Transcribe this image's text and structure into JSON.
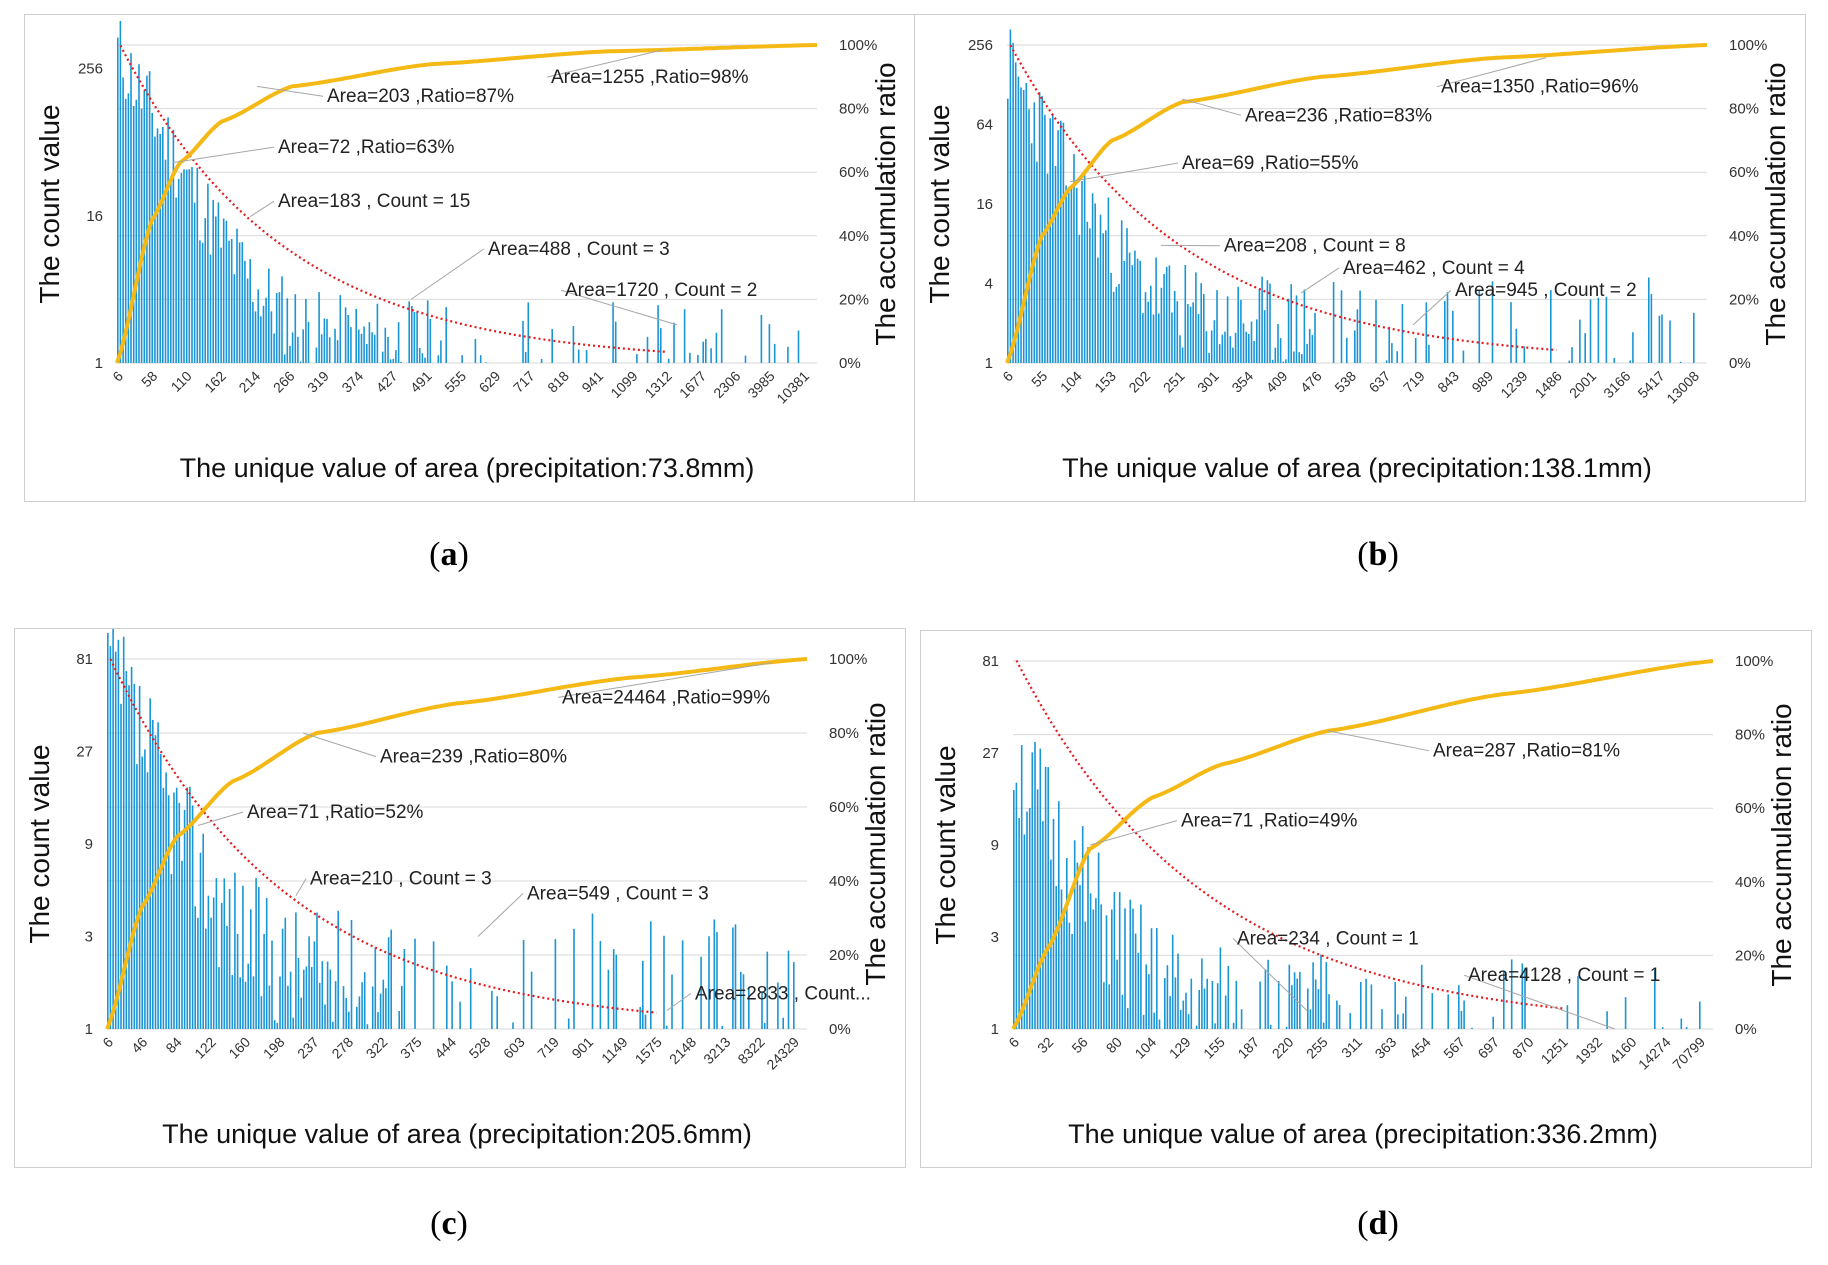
{
  "colors": {
    "bars": "#1b96d4",
    "cumulative": "#f5b915",
    "fit": "#e41a1c",
    "grid": "#d9d9d9",
    "annotation": "#a6a6a6"
  },
  "chart_data": [
    {
      "id": "a",
      "caption": "a",
      "type": "bar",
      "xlabel": "The unique value of area  (precipitation:73.8mm)",
      "ylabel": "The count value",
      "y2label": "The accumulation ratio",
      "y_ticks": [
        "256",
        "16",
        "1"
      ],
      "y_max": 400,
      "y2_ticks": [
        "100%",
        "80%",
        "60%",
        "40%",
        "20%",
        "0%"
      ],
      "x_ticks": [
        "6",
        "58",
        "110",
        "162",
        "214",
        "266",
        "319",
        "374",
        "427",
        "491",
        "555",
        "629",
        "717",
        "818",
        "941",
        "1099",
        "1312",
        "1677",
        "2306",
        "3985",
        "10381"
      ],
      "decay": 2.7,
      "tail_level": 1.5,
      "peak": 360,
      "curve_k": 0.11,
      "seed": 11,
      "cumulative_ratio": [
        [
          0,
          0
        ],
        [
          0.05,
          0.45
        ],
        [
          0.09,
          0.63
        ],
        [
          0.15,
          0.76
        ],
        [
          0.25,
          0.87
        ],
        [
          0.45,
          0.94
        ],
        [
          0.7,
          0.98
        ],
        [
          1,
          1
        ]
      ],
      "annotations": [
        {
          "text": "Area=203 ,Ratio=87%",
          "px": 0.2,
          "py": 0.87,
          "lx": 0.3,
          "ly": 0.82
        },
        {
          "text": "Area=1255 ,Ratio=98%",
          "px": 0.78,
          "py": 0.985,
          "lx": 0.62,
          "ly": 0.88
        },
        {
          "text": "Area=72 ,Ratio=63%",
          "px": 0.08,
          "py": 0.63,
          "lx": 0.23,
          "ly": 0.66
        },
        {
          "text": "Area=183 , Count = 15",
          "px": 0.19,
          "py": 0.46,
          "lx": 0.23,
          "ly": 0.49
        },
        {
          "text": "Area=488 , Count = 3",
          "px": 0.42,
          "py": 0.2,
          "lx": 0.53,
          "ly": 0.34
        },
        {
          "text": "Area=1720 , Count = 2",
          "px": 0.8,
          "py": 0.12,
          "lx": 0.64,
          "ly": 0.21
        }
      ]
    },
    {
      "id": "b",
      "caption": "b",
      "type": "bar",
      "xlabel": "The unique value of area (precipitation:138.1mm)",
      "ylabel": "The count value",
      "y2label": "The accumulation ratio",
      "y_ticks": [
        "256",
        "64",
        "16",
        "4",
        "1"
      ],
      "y_max": 256,
      "y2_ticks": [
        "100%",
        "80%",
        "60%",
        "40%",
        "20%",
        "0%"
      ],
      "x_ticks": [
        "6",
        "55",
        "104",
        "153",
        "202",
        "251",
        "301",
        "354",
        "409",
        "476",
        "538",
        "637",
        "719",
        "843",
        "989",
        "1239",
        "1486",
        "2001",
        "3166",
        "5417",
        "13008"
      ],
      "decay": 2.5,
      "tail_level": 2.0,
      "peak": 180,
      "curve_k": 0.09,
      "seed": 23,
      "cumulative_ratio": [
        [
          0,
          0
        ],
        [
          0.05,
          0.4
        ],
        [
          0.09,
          0.55
        ],
        [
          0.15,
          0.7
        ],
        [
          0.25,
          0.82
        ],
        [
          0.45,
          0.9
        ],
        [
          0.7,
          0.96
        ],
        [
          1,
          1
        ]
      ],
      "annotations": [
        {
          "text": "Area=236 ,Ratio=83%",
          "px": 0.25,
          "py": 0.83,
          "lx": 0.34,
          "ly": 0.76
        },
        {
          "text": "Area=1350 ,Ratio=96%",
          "px": 0.77,
          "py": 0.96,
          "lx": 0.62,
          "ly": 0.85
        },
        {
          "text": "Area=69 ,Ratio=55%",
          "px": 0.09,
          "py": 0.57,
          "lx": 0.25,
          "ly": 0.61
        },
        {
          "text": "Area=208 , Count = 8",
          "px": 0.22,
          "py": 0.37,
          "lx": 0.31,
          "ly": 0.35
        },
        {
          "text": "Area=462 , Count = 4",
          "px": 0.42,
          "py": 0.22,
          "lx": 0.48,
          "ly": 0.28
        },
        {
          "text": "Area=945 , Count = 2",
          "px": 0.58,
          "py": 0.12,
          "lx": 0.64,
          "ly": 0.21
        }
      ]
    },
    {
      "id": "c",
      "caption": "c",
      "type": "bar",
      "xlabel": "The unique value of area (precipitation:205.6mm)",
      "ylabel": "The count value",
      "y2label": "The accumulation ratio",
      "y_ticks": [
        "81",
        "27",
        "9",
        "3",
        "1"
      ],
      "y_max": 81,
      "y2_ticks": [
        "100%",
        "80%",
        "60%",
        "40%",
        "20%",
        "0%"
      ],
      "x_ticks": [
        "6",
        "46",
        "84",
        "122",
        "160",
        "198",
        "237",
        "278",
        "322",
        "375",
        "444",
        "528",
        "603",
        "719",
        "901",
        "1149",
        "1575",
        "2148",
        "3213",
        "8322",
        "24329"
      ],
      "decay": 2.3,
      "tail_level": 1.8,
      "peak": 80,
      "curve_k": 0.08,
      "seed": 37,
      "cumulative_ratio": [
        [
          0,
          0
        ],
        [
          0.05,
          0.33
        ],
        [
          0.1,
          0.52
        ],
        [
          0.18,
          0.67
        ],
        [
          0.3,
          0.8
        ],
        [
          0.5,
          0.88
        ],
        [
          0.75,
          0.95
        ],
        [
          1,
          1
        ]
      ],
      "annotations": [
        {
          "text": "Area=239 ,Ratio=80%",
          "px": 0.28,
          "py": 0.8,
          "lx": 0.39,
          "ly": 0.72
        },
        {
          "text": "Area=24464 ,Ratio=99%",
          "px": 0.95,
          "py": 0.99,
          "lx": 0.65,
          "ly": 0.88
        },
        {
          "text": "Area=71 ,Ratio=52%",
          "px": 0.13,
          "py": 0.55,
          "lx": 0.2,
          "ly": 0.57
        },
        {
          "text": "Area=210 , Count = 3",
          "px": 0.27,
          "py": 0.36,
          "lx": 0.29,
          "ly": 0.39
        },
        {
          "text": "Area=549 , Count = 3",
          "px": 0.53,
          "py": 0.25,
          "lx": 0.6,
          "ly": 0.35
        },
        {
          "text": "Area=2833 , Count...",
          "px": 0.8,
          "py": 0.05,
          "lx": 0.84,
          "ly": 0.08
        }
      ]
    },
    {
      "id": "d",
      "caption": "d",
      "type": "bar",
      "xlabel": "The unique value of area (precipitation:336.2mm)",
      "ylabel": "The count value",
      "y2label": "The accumulation ratio",
      "y_ticks": [
        "81",
        "27",
        "9",
        "3",
        "1"
      ],
      "y_max": 81,
      "y2_ticks": [
        "100%",
        "80%",
        "60%",
        "40%",
        "20%",
        "0%"
      ],
      "x_ticks": [
        "6",
        "32",
        "56",
        "80",
        "104",
        "129",
        "155",
        "187",
        "220",
        "255",
        "311",
        "363",
        "454",
        "567",
        "697",
        "870",
        "1251",
        "1932",
        "4160",
        "14274",
        "70799"
      ],
      "decay": 2.0,
      "tail_level": 1.1,
      "peak": 25,
      "curve_k": 0.05,
      "seed": 51,
      "cumulative_ratio": [
        [
          0,
          0
        ],
        [
          0.05,
          0.22
        ],
        [
          0.11,
          0.49
        ],
        [
          0.2,
          0.63
        ],
        [
          0.3,
          0.72
        ],
        [
          0.45,
          0.81
        ],
        [
          0.7,
          0.91
        ],
        [
          1,
          1
        ]
      ],
      "annotations": [
        {
          "text": "Area=287 ,Ratio=81%",
          "px": 0.45,
          "py": 0.81,
          "lx": 0.6,
          "ly": 0.74
        },
        {
          "text": "Area=71 ,Ratio=49%",
          "px": 0.11,
          "py": 0.5,
          "lx": 0.24,
          "ly": 0.55
        },
        {
          "text": "Area=234 , Count = 1",
          "px": 0.42,
          "py": 0.05,
          "lx": 0.32,
          "ly": 0.23
        },
        {
          "text": "Area=4128 , Count = 1",
          "px": 0.86,
          "py": 0.0,
          "lx": 0.65,
          "ly": 0.13
        }
      ]
    }
  ]
}
